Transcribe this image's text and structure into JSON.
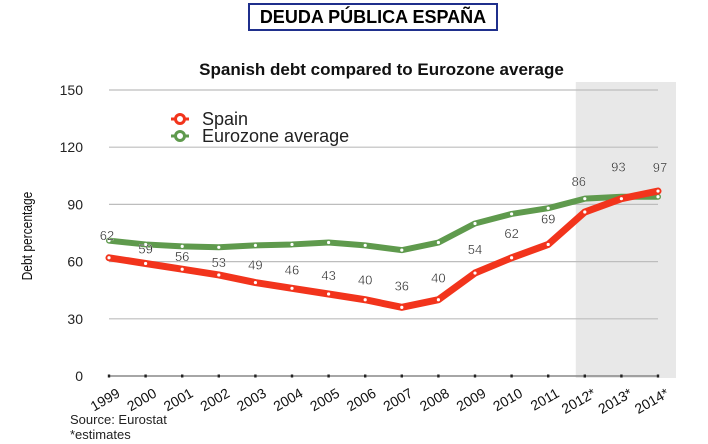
{
  "banner": {
    "title": "DEUDA PÚBLICA ESPAÑA",
    "border_color": "#1f2f8c"
  },
  "chart_data": {
    "type": "line",
    "title": "Spanish debt compared to Eurozone average",
    "xlabel": "",
    "ylabel": "Debt percentage",
    "ylim": [
      0,
      150
    ],
    "yticks": [
      0,
      30,
      60,
      90,
      120,
      150
    ],
    "grid": true,
    "legend_position": "top-left",
    "categories": [
      "1999",
      "2000",
      "2001",
      "2002",
      "2003",
      "2004",
      "2005",
      "2006",
      "2007",
      "2008",
      "2009",
      "2010",
      "2011",
      "2012*",
      "2013*",
      "2014*"
    ],
    "shaded_categories": [
      "2012*",
      "2013*",
      "2014*"
    ],
    "series": [
      {
        "name": "Spain",
        "color": "#f2341c",
        "values": [
          62,
          59,
          56,
          53,
          49,
          46,
          43,
          40,
          36,
          40,
          54,
          62,
          69,
          86,
          93,
          97
        ],
        "labels": [
          "62",
          "59",
          "56",
          "53",
          "49",
          "46",
          "43",
          "40",
          "36",
          "40",
          "54",
          "62",
          "69",
          "86",
          "93",
          "97"
        ]
      },
      {
        "name": "Eurozone average",
        "color": "#5f9a4d",
        "values": [
          71,
          69,
          68,
          67.5,
          68.5,
          69,
          70,
          68.5,
          66,
          70,
          80,
          85,
          88,
          93,
          94,
          94
        ]
      }
    ]
  },
  "footer": {
    "source": "Source: Eurostat",
    "note": "*estimates"
  }
}
